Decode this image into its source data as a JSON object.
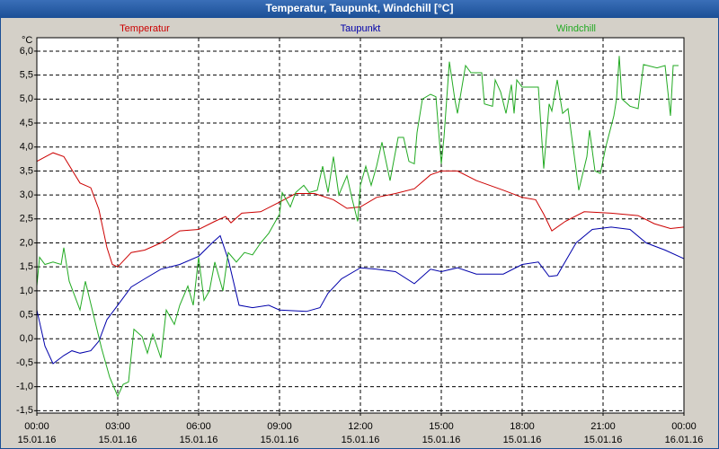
{
  "chart_data": {
    "type": "line",
    "title": "Temperatur, Taupunkt, Windchill [°C]",
    "y_label": "°C",
    "legend": "top",
    "grid": true,
    "xlim": [
      0,
      24
    ],
    "xticks": [
      {
        "value": 0,
        "label": "00:00",
        "date": "15.01.16"
      },
      {
        "value": 3,
        "label": "03:00",
        "date": "15.01.16"
      },
      {
        "value": 6,
        "label": "06:00",
        "date": "15.01.16"
      },
      {
        "value": 9,
        "label": "09:00",
        "date": "15.01.16"
      },
      {
        "value": 12,
        "label": "12:00",
        "date": "15.01.16"
      },
      {
        "value": 15,
        "label": "15:00",
        "date": "15.01.16"
      },
      {
        "value": 18,
        "label": "18:00",
        "date": "15.01.16"
      },
      {
        "value": 21,
        "label": "21:00",
        "date": "15.01.16"
      },
      {
        "value": 24,
        "label": "00:00",
        "date": "16.01.16"
      }
    ],
    "ylim": [
      -1.55,
      6.28
    ],
    "yticks": [
      {
        "value": -1.5,
        "label": "-1,5"
      },
      {
        "value": -1,
        "label": "-1,0"
      },
      {
        "value": -0.5,
        "label": "-0,5"
      },
      {
        "value": 0,
        "label": "0,0"
      },
      {
        "value": 0.5,
        "label": "0,5"
      },
      {
        "value": 1,
        "label": "1,0"
      },
      {
        "value": 1.5,
        "label": "1,5"
      },
      {
        "value": 2,
        "label": "2,0"
      },
      {
        "value": 2.5,
        "label": "2,5"
      },
      {
        "value": 3,
        "label": "3,0"
      },
      {
        "value": 3.5,
        "label": "3,5"
      },
      {
        "value": 4,
        "label": "4,0"
      },
      {
        "value": 4.5,
        "label": "4,5"
      },
      {
        "value": 5,
        "label": "5,0"
      },
      {
        "value": 5.5,
        "label": "5,5"
      },
      {
        "value": 6,
        "label": "6,0"
      }
    ],
    "series": [
      {
        "name": "Temperatur",
        "color": "#cc0000",
        "x": [
          0,
          0.6,
          1,
          1.6,
          2,
          2.3,
          2.6,
          2.8,
          3,
          3.5,
          4,
          4.6,
          5.3,
          6,
          6.6,
          7,
          7.2,
          7.6,
          8.3,
          9,
          9.6,
          10.3,
          11,
          11.5,
          12,
          12.6,
          13.3,
          14,
          14.6,
          15,
          15.6,
          16.3,
          17.3,
          18,
          18.5,
          18.8,
          19.1,
          19.6,
          20.3,
          21.3,
          22.3,
          22.9,
          23.5,
          24
        ],
        "values": [
          3.7,
          3.88,
          3.8,
          3.25,
          3.15,
          2.7,
          1.9,
          1.55,
          1.5,
          1.8,
          1.85,
          2.0,
          2.25,
          2.28,
          2.45,
          2.55,
          2.42,
          2.62,
          2.65,
          2.85,
          3.03,
          3.03,
          2.9,
          2.72,
          2.75,
          2.95,
          3.03,
          3.13,
          3.42,
          3.5,
          3.5,
          3.3,
          3.1,
          2.95,
          2.9,
          2.6,
          2.25,
          2.45,
          2.65,
          2.62,
          2.57,
          2.4,
          2.3,
          2.33
        ]
      },
      {
        "name": "Taupunkt",
        "color": "#0000aa",
        "x": [
          0,
          0.3,
          0.6,
          1,
          1.3,
          1.6,
          2,
          2.3,
          2.6,
          3,
          3.5,
          4,
          4.6,
          5.3,
          6,
          6.5,
          6.8,
          7.1,
          7.5,
          8,
          8.6,
          9,
          10,
          10.5,
          10.8,
          11.3,
          12,
          12.6,
          13.3,
          14,
          14.6,
          15,
          15.6,
          16.3,
          17.3,
          18,
          18.6,
          19,
          19.3,
          20,
          20.6,
          21.3,
          22,
          22.6,
          23.3,
          24
        ],
        "values": [
          0.6,
          -0.15,
          -0.52,
          -0.35,
          -0.25,
          -0.3,
          -0.25,
          -0.05,
          0.4,
          0.7,
          1.08,
          1.25,
          1.45,
          1.55,
          1.72,
          2.0,
          2.15,
          1.65,
          0.7,
          0.65,
          0.7,
          0.6,
          0.57,
          0.65,
          0.95,
          1.25,
          1.48,
          1.45,
          1.4,
          1.15,
          1.45,
          1.4,
          1.48,
          1.35,
          1.35,
          1.55,
          1.6,
          1.3,
          1.32,
          2.0,
          2.28,
          2.33,
          2.28,
          2.0,
          1.85,
          1.67
        ]
      },
      {
        "name": "Windchill",
        "color": "#22aa22",
        "x": [
          0,
          0.1,
          0.3,
          0.6,
          0.9,
          1,
          1.2,
          1.6,
          1.8,
          2.1,
          2.4,
          2.7,
          3,
          3.2,
          3.4,
          3.6,
          3.9,
          4.1,
          4.3,
          4.6,
          4.8,
          5.1,
          5.3,
          5.6,
          5.8,
          6,
          6.2,
          6.4,
          6.6,
          6.9,
          7.1,
          7.4,
          7.7,
          8,
          8.3,
          8.6,
          9,
          9.1,
          9.4,
          9.6,
          9.9,
          10.1,
          10.4,
          10.6,
          10.8,
          11,
          11.2,
          11.5,
          11.7,
          11.9,
          12,
          12.2,
          12.4,
          12.6,
          12.8,
          13.1,
          13.4,
          13.6,
          13.8,
          14,
          14.1,
          14.3,
          14.6,
          14.8,
          15,
          15.1,
          15.3,
          15.5,
          15.6,
          15.9,
          16.1,
          16.5,
          16.6,
          16.9,
          17,
          17.2,
          17.4,
          17.6,
          17.7,
          17.8,
          18,
          18.6,
          18.8,
          19,
          19.1,
          19.3,
          19.5,
          19.7,
          20.1,
          20.4,
          20.5,
          20.7,
          20.9,
          21.1,
          21.4,
          21.5,
          21.6,
          21.7,
          22,
          22.3,
          22.5,
          23,
          23.3,
          23.5,
          23.6,
          23.8
        ],
        "values": [
          1.1,
          1.7,
          1.55,
          1.6,
          1.55,
          1.9,
          1.2,
          0.6,
          1.2,
          0.5,
          -0.2,
          -0.8,
          -1.2,
          -0.95,
          -0.9,
          0.2,
          0.05,
          -0.3,
          0.1,
          -0.4,
          0.6,
          0.3,
          0.7,
          1.1,
          0.7,
          1.7,
          0.8,
          1.0,
          1.6,
          1.0,
          1.8,
          1.6,
          1.8,
          1.75,
          2.0,
          2.2,
          2.6,
          3.05,
          2.75,
          3.05,
          3.2,
          3.05,
          3.1,
          3.6,
          3.05,
          3.8,
          3.0,
          3.4,
          2.9,
          2.45,
          3.2,
          3.6,
          3.2,
          3.6,
          4.1,
          3.3,
          4.2,
          4.2,
          3.7,
          3.65,
          4.3,
          5.0,
          5.1,
          5.05,
          3.65,
          4.2,
          5.78,
          5.0,
          4.7,
          5.7,
          5.55,
          5.55,
          4.9,
          4.85,
          5.4,
          5.15,
          4.7,
          5.3,
          4.7,
          5.4,
          5.25,
          5.25,
          3.55,
          4.9,
          4.75,
          5.4,
          4.7,
          4.8,
          3.1,
          3.8,
          4.35,
          3.5,
          3.45,
          4.0,
          4.65,
          5.0,
          5.9,
          5.0,
          4.85,
          4.8,
          5.72,
          5.65,
          5.7,
          4.65,
          5.7,
          5.7
        ]
      }
    ]
  }
}
